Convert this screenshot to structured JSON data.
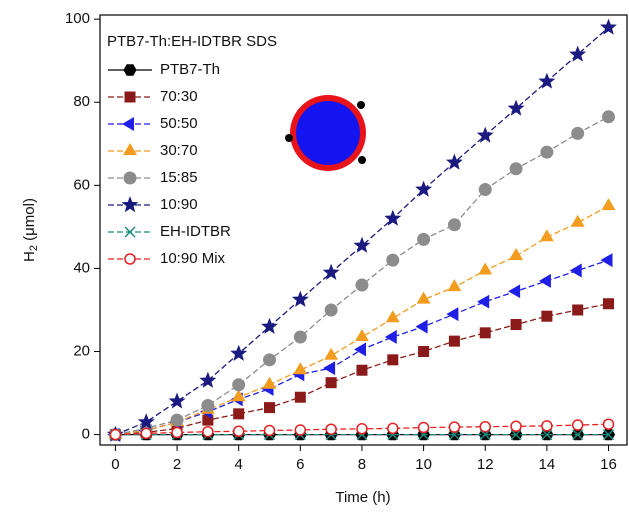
{
  "chart_data": {
    "type": "line",
    "x_label": "Time (h)",
    "y_label": {
      "main": "H",
      "sub": "2",
      "rest": " (μmol)"
    },
    "legend_title": "PTB7-Th:EH-IDTBR SDS",
    "legend": "upper left",
    "x": [
      0,
      1,
      2,
      3,
      4,
      5,
      6,
      7,
      8,
      9,
      10,
      11,
      12,
      13,
      14,
      15,
      16
    ],
    "xlim": [
      -0.5,
      16.6
    ],
    "xticks": [
      0,
      2,
      4,
      6,
      8,
      10,
      12,
      14,
      16
    ],
    "ylim": [
      -2.5,
      101
    ],
    "yticks": [
      0,
      20,
      40,
      60,
      80,
      100
    ],
    "series": [
      {
        "name": "PTB7-Th",
        "color": "#000000",
        "marker": "hexagon",
        "linestyle": "solid",
        "values": [
          0,
          0,
          0,
          0,
          0,
          0,
          0,
          0,
          0,
          0,
          0,
          0,
          0,
          0,
          0,
          0,
          0
        ]
      },
      {
        "name": "70:30",
        "color": "#8b1a1a",
        "marker": "square",
        "linestyle": "dashed",
        "values": [
          0,
          0.5,
          1.5,
          3.5,
          5,
          6.5,
          9,
          12.5,
          15.5,
          18,
          20,
          22.5,
          24.5,
          26.5,
          28.5,
          30,
          31.5
        ]
      },
      {
        "name": "50:50",
        "color": "#1f1fe6",
        "marker": "triangle-left",
        "linestyle": "dashed",
        "values": [
          0,
          1,
          3,
          5.5,
          8.5,
          11,
          14.5,
          16,
          20.5,
          23.5,
          26,
          29,
          32,
          34.5,
          37,
          39.5,
          42
        ]
      },
      {
        "name": "30:70",
        "color": "#f39c1f",
        "marker": "triangle-up",
        "linestyle": "dashed",
        "values": [
          0,
          1,
          3,
          6,
          9,
          12,
          15.5,
          19,
          23.5,
          28,
          32.5,
          35.5,
          39.5,
          43,
          47.5,
          51,
          55
        ]
      },
      {
        "name": "15:85",
        "color": "#8c8c8c",
        "marker": "circle",
        "linestyle": "dashed",
        "values": [
          0,
          1.5,
          3.5,
          7,
          12,
          18,
          23.5,
          30,
          36,
          42,
          47,
          50.5,
          59,
          64,
          68,
          72.5,
          76.5
        ]
      },
      {
        "name": "10:90",
        "color": "#1a1a80",
        "marker": "star",
        "linestyle": "dashed",
        "values": [
          0,
          3,
          8,
          13,
          19.5,
          26,
          32.5,
          39,
          45.5,
          52,
          59,
          65.5,
          72,
          78.5,
          85,
          91.5,
          98
        ]
      },
      {
        "name": "EH-IDTBR",
        "color": "#1a8c80",
        "marker": "x",
        "linestyle": "dashed",
        "values": [
          0,
          0,
          0,
          0,
          0,
          0,
          0,
          0,
          0,
          0,
          0,
          0,
          0,
          0,
          0,
          0,
          0
        ]
      },
      {
        "name": "10:90 Mix",
        "color": "#e62020",
        "marker": "open-circle",
        "linestyle": "dashed",
        "values": [
          0,
          0.3,
          0.5,
          0.7,
          0.8,
          1,
          1.1,
          1.3,
          1.4,
          1.5,
          1.7,
          1.8,
          1.9,
          2,
          2.1,
          2.3,
          2.5
        ]
      }
    ]
  }
}
